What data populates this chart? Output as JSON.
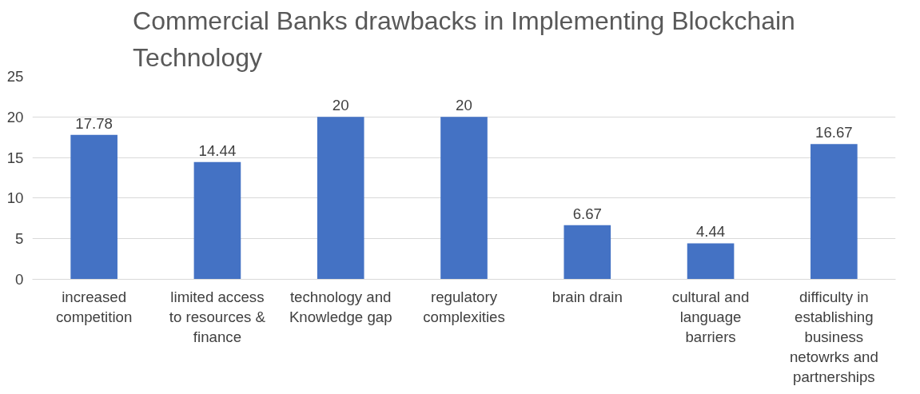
{
  "chart_data": {
    "type": "bar",
    "title": "Commercial Banks drawbacks in Implementing Blockchain Technology",
    "categories": [
      "increased competition",
      "limited access to resources & finance",
      "technology and Knowledge gap",
      "regulatory complexities",
      "brain drain",
      "cultural and language barriers",
      "difficulty in establishing business netowrks and partnerships"
    ],
    "values": [
      17.78,
      14.44,
      20,
      20,
      6.67,
      4.44,
      16.67
    ],
    "color": "#4472c4",
    "ylim": [
      0,
      25
    ],
    "yticks": [
      0,
      5,
      10,
      15,
      20,
      25
    ],
    "grid": "y",
    "data_labels": true
  }
}
